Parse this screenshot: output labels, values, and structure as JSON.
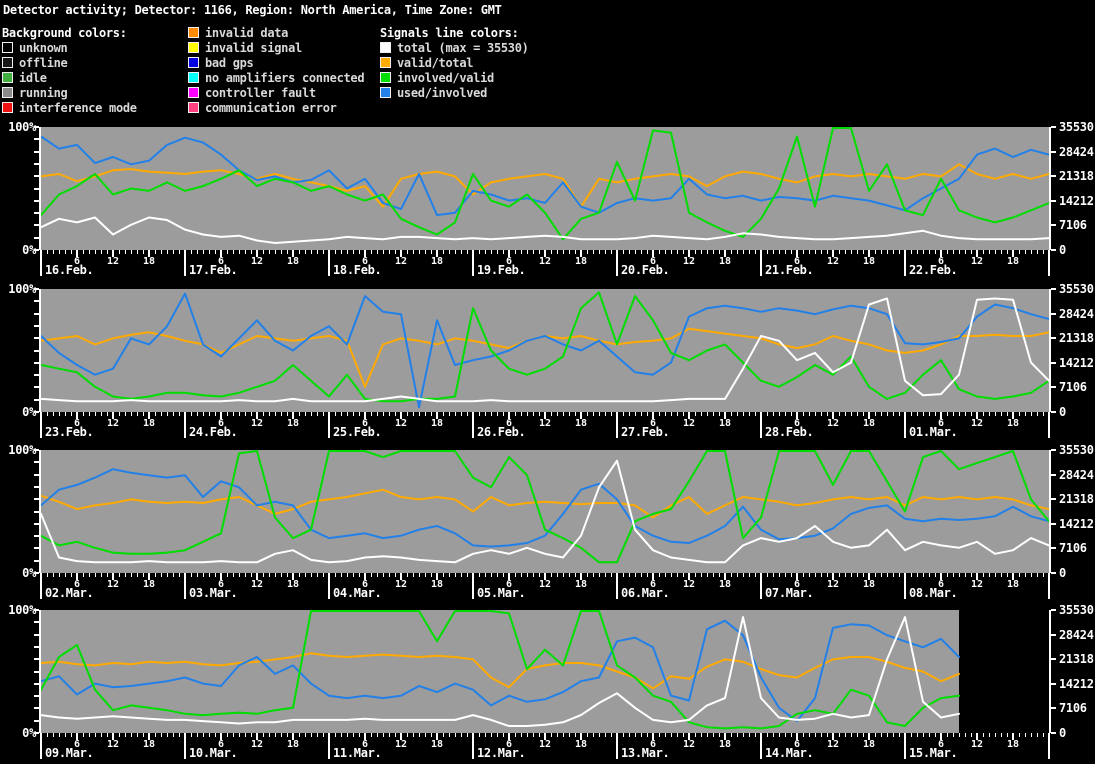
{
  "title": "Detector activity; Detector: 1166, Region: North America, Time Zone: GMT",
  "legend": {
    "background_title": "Background colors:",
    "background_items": [
      {
        "label": "unknown",
        "color": "#000000"
      },
      {
        "label": "offline",
        "color": "#161616"
      },
      {
        "label": "idle",
        "color": "#3fae3f"
      },
      {
        "label": "running",
        "color": "#8a8a8a"
      },
      {
        "label": "interference mode",
        "color": "#ee1111"
      }
    ],
    "status_items": [
      {
        "label": "invalid data",
        "color": "#ff8a00"
      },
      {
        "label": "invalid signal",
        "color": "#ffff00"
      },
      {
        "label": "bad gps",
        "color": "#0000e0"
      },
      {
        "label": "no amplifiers connected",
        "color": "#00ffff"
      },
      {
        "label": "controller fault",
        "color": "#ff00ff"
      },
      {
        "label": "communication error",
        "color": "#ff4080"
      }
    ],
    "signals_title": "Signals line colors:",
    "signal_items": [
      {
        "label": "total (max = 35530)",
        "color": "#ffffff"
      },
      {
        "label": "valid/total",
        "color": "#ffaa00"
      },
      {
        "label": "involved/valid",
        "color": "#00dd00"
      },
      {
        "label": "used/involved",
        "color": "#2280e8"
      }
    ]
  },
  "axes": {
    "y_left_top": "100%",
    "y_left_bottom": "0%",
    "y_right_labels": [
      "35530",
      "28424",
      "21318",
      "14212",
      "7106",
      "0"
    ],
    "hour_labels": [
      "6",
      "12",
      "18"
    ],
    "y_right_max": 35530
  },
  "plot_colors": {
    "background_running": "#9c9c9c",
    "page_background": "#000000"
  },
  "chart_data": [
    {
      "type": "line",
      "title": "16.Feb. - 22.Feb.",
      "days": [
        "16.Feb.",
        "17.Feb.",
        "18.Feb.",
        "19.Feb.",
        "20.Feb.",
        "21.Feb.",
        "22.Feb."
      ],
      "sample_interval_hours": 3,
      "total_hours": 168,
      "data_end_hour": 168,
      "ylim": [
        0,
        100
      ],
      "y2lim": [
        0,
        35530
      ],
      "series": [
        {
          "name": "valid/total",
          "color": "#ffaa00",
          "values": [
            60,
            62,
            56,
            60,
            65,
            66,
            64,
            63,
            62,
            64,
            65,
            62,
            58,
            62,
            58,
            55,
            52,
            48,
            52,
            35,
            58,
            62,
            64,
            60,
            45,
            55,
            58,
            60,
            62,
            58,
            35,
            58,
            55,
            58,
            60,
            62,
            60,
            52,
            60,
            64,
            62,
            58,
            55,
            60,
            62,
            60,
            62,
            60,
            58,
            62,
            60,
            70,
            62,
            58,
            62,
            58,
            62
          ]
        },
        {
          "name": "used/involved",
          "color": "#2280e8",
          "values": [
            93,
            83,
            86,
            71,
            76,
            70,
            73,
            86,
            92,
            88,
            78,
            65,
            57,
            60,
            55,
            57,
            65,
            50,
            58,
            38,
            33,
            62,
            28,
            30,
            48,
            45,
            40,
            42,
            38,
            55,
            35,
            30,
            38,
            42,
            40,
            42,
            58,
            45,
            42,
            44,
            40,
            43,
            42,
            40,
            44,
            42,
            40,
            36,
            32,
            42,
            50,
            58,
            78,
            83,
            76,
            82,
            78
          ]
        },
        {
          "name": "involved/valid",
          "color": "#00dd00",
          "values": [
            28,
            45,
            52,
            62,
            45,
            50,
            48,
            55,
            48,
            52,
            58,
            65,
            52,
            58,
            55,
            48,
            52,
            45,
            40,
            45,
            25,
            18,
            12,
            22,
            62,
            40,
            35,
            45,
            30,
            8,
            25,
            30,
            72,
            40,
            98,
            96,
            30,
            22,
            15,
            10,
            25,
            50,
            93,
            35,
            100,
            100,
            48,
            70,
            32,
            28,
            58,
            32,
            26,
            22,
            26,
            32,
            38
          ]
        },
        {
          "name": "total",
          "color": "#ffffff",
          "values": [
            18,
            25,
            22,
            26,
            12,
            20,
            26,
            24,
            16,
            12,
            10,
            11,
            7,
            5,
            6,
            7,
            8,
            10,
            9,
            8,
            10,
            10,
            9,
            8,
            9,
            8,
            9,
            10,
            11,
            10,
            8,
            8,
            8,
            9,
            11,
            10,
            9,
            8,
            10,
            13,
            12,
            10,
            9,
            8,
            8,
            9,
            10,
            11,
            13,
            15,
            11,
            9,
            8,
            8,
            8,
            8,
            9
          ]
        }
      ]
    },
    {
      "type": "line",
      "title": "23.Feb. - 01.Mar.",
      "days": [
        "23.Feb.",
        "24.Feb.",
        "25.Feb.",
        "26.Feb.",
        "27.Feb.",
        "28.Feb.",
        "01.Mar."
      ],
      "sample_interval_hours": 3,
      "total_hours": 168,
      "data_end_hour": 168,
      "ylim": [
        0,
        100
      ],
      "y2lim": [
        0,
        35530
      ],
      "series": [
        {
          "name": "valid/total",
          "color": "#ffaa00",
          "values": [
            58,
            60,
            62,
            55,
            60,
            63,
            65,
            62,
            58,
            55,
            48,
            55,
            62,
            60,
            58,
            60,
            62,
            58,
            20,
            55,
            60,
            58,
            55,
            60,
            58,
            55,
            52,
            58,
            62,
            60,
            62,
            58,
            55,
            57,
            58,
            60,
            68,
            66,
            64,
            62,
            60,
            55,
            52,
            55,
            62,
            58,
            55,
            50,
            48,
            50,
            55,
            62,
            62,
            63,
            62,
            62,
            65
          ]
        },
        {
          "name": "used/involved",
          "color": "#2280e8",
          "values": [
            62,
            48,
            38,
            30,
            35,
            60,
            55,
            70,
            97,
            55,
            45,
            60,
            75,
            58,
            50,
            62,
            70,
            55,
            95,
            82,
            80,
            3,
            75,
            38,
            42,
            45,
            50,
            58,
            62,
            55,
            50,
            58,
            45,
            32,
            30,
            40,
            78,
            85,
            87,
            85,
            82,
            85,
            83,
            80,
            84,
            87,
            85,
            80,
            56,
            55,
            57,
            60,
            78,
            88,
            85,
            80,
            76
          ]
        },
        {
          "name": "involved/valid",
          "color": "#00dd00",
          "values": [
            38,
            35,
            32,
            20,
            12,
            10,
            12,
            15,
            15,
            13,
            12,
            15,
            20,
            25,
            38,
            25,
            12,
            30,
            10,
            8,
            8,
            10,
            10,
            12,
            85,
            50,
            35,
            30,
            35,
            45,
            85,
            98,
            55,
            95,
            75,
            48,
            42,
            50,
            55,
            40,
            25,
            20,
            28,
            38,
            30,
            45,
            20,
            10,
            15,
            30,
            42,
            18,
            12,
            10,
            12,
            15,
            25
          ]
        },
        {
          "name": "total",
          "color": "#ffffff",
          "values": [
            10,
            9,
            8,
            8,
            8,
            9,
            8,
            8,
            8,
            8,
            8,
            9,
            8,
            8,
            10,
            8,
            8,
            8,
            8,
            10,
            12,
            10,
            8,
            8,
            8,
            9,
            8,
            8,
            8,
            8,
            8,
            8,
            8,
            8,
            8,
            9,
            10,
            10,
            10,
            35,
            62,
            58,
            42,
            48,
            32,
            40,
            88,
            93,
            25,
            13,
            14,
            30,
            92,
            93,
            92,
            40,
            25
          ]
        }
      ]
    },
    {
      "type": "line",
      "title": "02.Mar. - 08.Mar.",
      "days": [
        "02.Mar.",
        "03.Mar.",
        "04.Mar.",
        "05.Mar.",
        "06.Mar.",
        "07.Mar.",
        "08.Mar."
      ],
      "sample_interval_hours": 3,
      "total_hours": 168,
      "data_end_hour": 168,
      "ylim": [
        0,
        100
      ],
      "y2lim": [
        0,
        35530
      ],
      "series": [
        {
          "name": "valid/total",
          "color": "#ffaa00",
          "values": [
            63,
            58,
            52,
            55,
            57,
            60,
            58,
            57,
            58,
            57,
            60,
            62,
            55,
            48,
            52,
            58,
            60,
            62,
            65,
            68,
            62,
            60,
            62,
            60,
            50,
            62,
            55,
            57,
            58,
            57,
            56,
            57,
            57,
            55,
            45,
            55,
            62,
            48,
            55,
            62,
            60,
            58,
            55,
            57,
            60,
            62,
            60,
            62,
            55,
            62,
            60,
            62,
            60,
            62,
            60,
            55,
            52
          ]
        },
        {
          "name": "used/involved",
          "color": "#2280e8",
          "values": [
            55,
            68,
            72,
            78,
            85,
            82,
            80,
            78,
            80,
            62,
            75,
            70,
            55,
            58,
            55,
            35,
            28,
            30,
            32,
            28,
            30,
            35,
            38,
            32,
            22,
            21,
            22,
            24,
            30,
            48,
            68,
            73,
            60,
            38,
            30,
            25,
            24,
            30,
            38,
            54,
            35,
            27,
            28,
            30,
            36,
            48,
            53,
            55,
            44,
            42,
            44,
            43,
            44,
            46,
            54,
            46,
            42
          ]
        },
        {
          "name": "involved/valid",
          "color": "#00dd00",
          "values": [
            30,
            22,
            25,
            20,
            16,
            15,
            15,
            16,
            18,
            25,
            32,
            98,
            100,
            45,
            28,
            35,
            100,
            100,
            100,
            95,
            100,
            100,
            100,
            100,
            78,
            70,
            95,
            80,
            35,
            28,
            20,
            8,
            8,
            42,
            48,
            52,
            75,
            100,
            100,
            28,
            45,
            100,
            100,
            100,
            72,
            100,
            100,
            75,
            50,
            95,
            100,
            85,
            90,
            95,
            100,
            60,
            42
          ]
        },
        {
          "name": "total",
          "color": "#ffffff",
          "values": [
            48,
            12,
            9,
            8,
            8,
            8,
            9,
            8,
            8,
            8,
            9,
            8,
            8,
            15,
            18,
            10,
            8,
            9,
            12,
            13,
            12,
            10,
            9,
            8,
            15,
            18,
            15,
            20,
            15,
            12,
            30,
            70,
            92,
            35,
            18,
            12,
            10,
            8,
            8,
            22,
            28,
            25,
            28,
            38,
            25,
            20,
            22,
            35,
            18,
            25,
            22,
            20,
            25,
            15,
            18,
            28,
            22
          ]
        }
      ]
    },
    {
      "type": "line",
      "title": "09.Mar. - 15.Mar.",
      "days": [
        "09.Mar.",
        "10.Mar.",
        "11.Mar.",
        "12.Mar.",
        "13.Mar.",
        "14.Mar.",
        "15.Mar."
      ],
      "sample_interval_hours": 3,
      "total_hours": 168,
      "data_end_hour": 153,
      "ylim": [
        0,
        100
      ],
      "y2lim": [
        0,
        35530
      ],
      "series": [
        {
          "name": "valid/total",
          "color": "#ffaa00",
          "values": [
            57,
            58,
            56,
            55,
            57,
            56,
            58,
            57,
            58,
            56,
            55,
            57,
            58,
            60,
            62,
            65,
            63,
            62,
            63,
            64,
            63,
            62,
            63,
            62,
            60,
            45,
            37,
            52,
            55,
            57,
            57,
            55,
            50,
            45,
            36,
            46,
            44,
            54,
            60,
            58,
            52,
            47,
            45,
            53,
            60,
            62,
            62,
            58,
            53,
            50,
            42,
            48
          ]
        },
        {
          "name": "used/involved",
          "color": "#2280e8",
          "values": [
            42,
            46,
            31,
            40,
            37,
            38,
            40,
            42,
            45,
            40,
            38,
            55,
            62,
            48,
            55,
            40,
            30,
            28,
            30,
            28,
            30,
            38,
            33,
            40,
            35,
            22,
            30,
            25,
            27,
            33,
            42,
            45,
            75,
            78,
            70,
            30,
            26,
            85,
            92,
            80,
            45,
            20,
            9,
            28,
            86,
            89,
            88,
            80,
            75,
            70,
            77,
            62
          ]
        },
        {
          "name": "involved/valid",
          "color": "#00dd00",
          "values": [
            35,
            62,
            72,
            35,
            18,
            22,
            20,
            18,
            15,
            14,
            15,
            16,
            15,
            18,
            20,
            100,
            100,
            100,
            100,
            100,
            100,
            100,
            75,
            100,
            100,
            100,
            98,
            52,
            68,
            55,
            100,
            100,
            55,
            45,
            30,
            25,
            8,
            4,
            3,
            4,
            3,
            5,
            15,
            18,
            15,
            35,
            30,
            8,
            5,
            20,
            28,
            30
          ]
        },
        {
          "name": "total",
          "color": "#ffffff",
          "values": [
            14,
            12,
            11,
            12,
            13,
            12,
            11,
            10,
            10,
            9,
            8,
            7,
            8,
            8,
            10,
            10,
            10,
            10,
            11,
            10,
            10,
            10,
            10,
            10,
            14,
            10,
            5,
            5,
            6,
            8,
            14,
            24,
            32,
            20,
            10,
            8,
            10,
            22,
            28,
            95,
            28,
            12,
            10,
            11,
            15,
            12,
            14,
            60,
            95,
            25,
            12,
            15
          ]
        }
      ]
    }
  ]
}
